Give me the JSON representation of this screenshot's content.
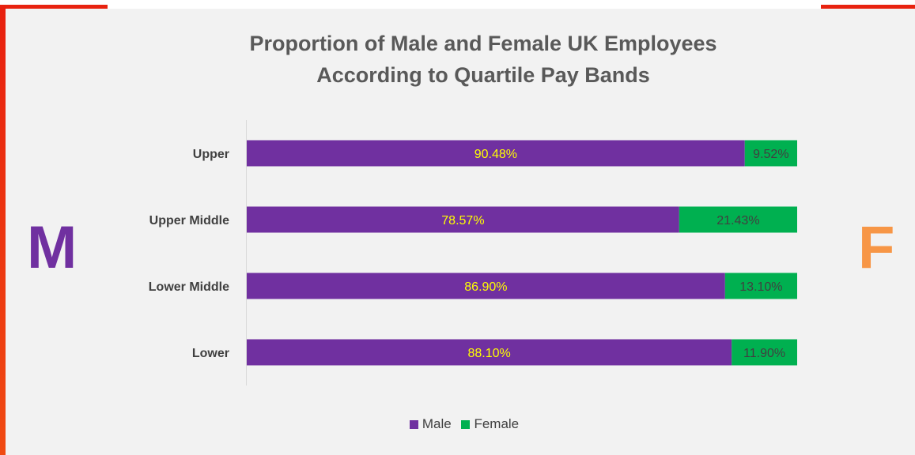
{
  "chart_data": {
    "type": "bar",
    "orientation": "horizontal",
    "stacked": true,
    "title_lines": [
      "Proportion of Male and Female UK Employees",
      "According to Quartile Pay Bands"
    ],
    "categories": [
      "Upper",
      "Upper Middle",
      "Lower Middle",
      "Lower"
    ],
    "series": [
      {
        "name": "Male",
        "values": [
          90.48,
          78.57,
          86.9,
          88.1
        ],
        "labels": [
          "90.48%",
          "78.57%",
          "86.90%",
          "88.10%"
        ]
      },
      {
        "name": "Female",
        "values": [
          9.52,
          21.43,
          13.1,
          11.9
        ],
        "labels": [
          "9.52%",
          "21.43%",
          "13.10%",
          "11.90%"
        ]
      }
    ],
    "xlim": [
      0,
      100
    ],
    "grid": false,
    "legend_position": "bottom"
  },
  "colors": {
    "male": "#7030a0",
    "female": "#00b050",
    "male_label": "#ffff00",
    "female_label": "#404040",
    "letter_m": "#7030a0",
    "letter_f": "#f79646"
  },
  "side_letters": {
    "left": "M",
    "right": "F"
  }
}
